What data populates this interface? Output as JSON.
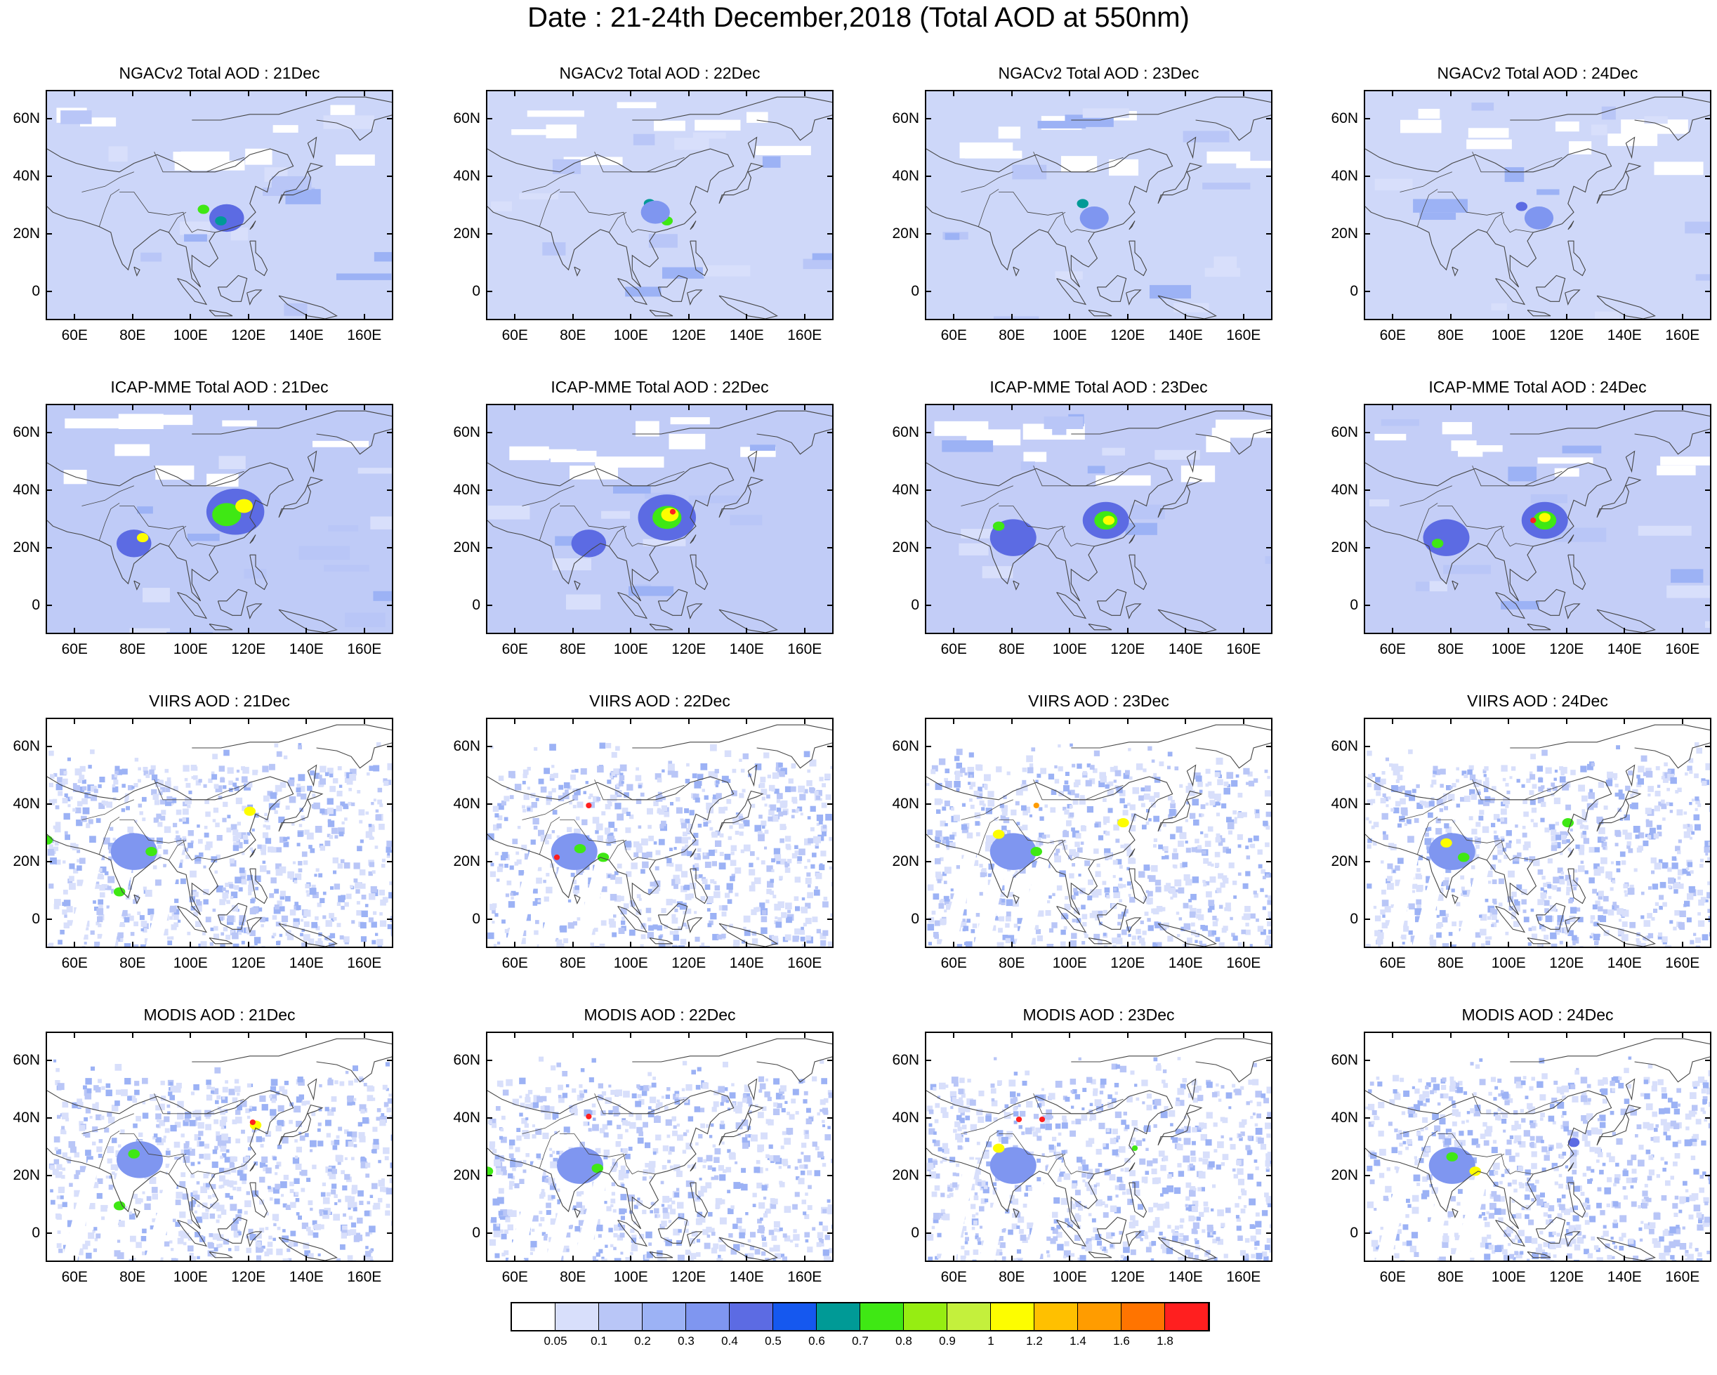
{
  "title": "Date : 21-24th December,2018 (Total AOD at 550nm)",
  "chart_data": {
    "type": "heatmap",
    "layout": "4x4 panel grid",
    "x_axis": {
      "ticks": [
        "60E",
        "80E",
        "100E",
        "120E",
        "140E",
        "160E"
      ],
      "tick_values": [
        60,
        80,
        100,
        120,
        140,
        160
      ],
      "range": [
        50,
        170
      ]
    },
    "y_axis": {
      "ticks": [
        "60N",
        "40N",
        "20N",
        "0"
      ],
      "tick_values": [
        60,
        40,
        20,
        0
      ],
      "range": [
        -10,
        70
      ]
    },
    "colorbar": {
      "labels": [
        "0.05",
        "0.1",
        "0.2",
        "0.3",
        "0.4",
        "0.5",
        "0.6",
        "0.7",
        "0.8",
        "0.9",
        "1",
        "1.2",
        "1.4",
        "1.6",
        "1.8"
      ],
      "colors": [
        "#ffffff",
        "#d8dffb",
        "#b9c6f7",
        "#9cb2f5",
        "#7f96f0",
        "#5c6be3",
        "#1558ef",
        "#009a96",
        "#3fe814",
        "#96ed12",
        "#c4f03c",
        "#fdfd00",
        "#ffc000",
        "#ff9c00",
        "#ff7400",
        "#ff1f1f"
      ]
    },
    "panels": [
      {
        "title": "NGACv2 Total AOD : 21Dec",
        "bg": "#ccd6f9",
        "hot": [
          [
            112,
            26,
            6,
            "#5c6be3"
          ],
          [
            104,
            29,
            2,
            "#3fe814"
          ],
          [
            110,
            25,
            2,
            "#009a96"
          ]
        ]
      },
      {
        "title": "NGACv2 Total AOD : 22Dec",
        "bg": "#cfd8f9",
        "hot": [
          [
            106,
            31,
            2,
            "#009a96"
          ],
          [
            112,
            25,
            2,
            "#3fe814"
          ],
          [
            108,
            28,
            5,
            "#7f96f0"
          ]
        ]
      },
      {
        "title": "NGACv2 Total AOD : 23Dec",
        "bg": "#cdd7f9",
        "hot": [
          [
            104,
            31,
            2,
            "#009a96"
          ],
          [
            108,
            26,
            5,
            "#7f96f0"
          ]
        ]
      },
      {
        "title": "NGACv2 Total AOD : 24Dec",
        "bg": "#cfd8f9",
        "hot": [
          [
            104,
            30,
            2,
            "#5c6be3"
          ],
          [
            110,
            26,
            5,
            "#7f96f0"
          ]
        ]
      },
      {
        "title": "ICAP-MME Total AOD : 21Dec",
        "bg": "#bfcbf7",
        "hot": [
          [
            115,
            33,
            10,
            "#5c6be3"
          ],
          [
            112,
            32,
            5,
            "#3fe814"
          ],
          [
            118,
            35,
            3,
            "#fdfd00"
          ],
          [
            80,
            22,
            6,
            "#5c6be3"
          ],
          [
            83,
            24,
            2,
            "#fdfd00"
          ]
        ]
      },
      {
        "title": "ICAP-MME Total AOD : 22Dec",
        "bg": "#c1ccf7",
        "hot": [
          [
            112,
            31,
            10,
            "#5c6be3"
          ],
          [
            112,
            31,
            5,
            "#3fe814"
          ],
          [
            113,
            32,
            3,
            "#fdfd00"
          ],
          [
            114,
            33,
            1,
            "#ff1f1f"
          ],
          [
            85,
            22,
            6,
            "#5c6be3"
          ]
        ]
      },
      {
        "title": "ICAP-MME Total AOD : 23Dec",
        "bg": "#c3cdf7",
        "hot": [
          [
            112,
            30,
            8,
            "#5c6be3"
          ],
          [
            112,
            30,
            4,
            "#3fe814"
          ],
          [
            113,
            30,
            2,
            "#fdfd00"
          ],
          [
            80,
            24,
            8,
            "#5c6be3"
          ],
          [
            75,
            28,
            2,
            "#3fe814"
          ]
        ]
      },
      {
        "title": "ICAP-MME Total AOD : 24Dec",
        "bg": "#c4cef7",
        "hot": [
          [
            112,
            30,
            8,
            "#5c6be3"
          ],
          [
            112,
            30,
            4,
            "#3fe814"
          ],
          [
            112,
            31,
            2,
            "#fdfd00"
          ],
          [
            108,
            30,
            1,
            "#ff1f1f"
          ],
          [
            78,
            24,
            8,
            "#5c6be3"
          ],
          [
            75,
            22,
            2,
            "#3fe814"
          ]
        ]
      },
      {
        "title": "VIIRS AOD : 21Dec",
        "bg": "#e3e8fc",
        "hot": [
          [
            80,
            24,
            8,
            "#7f96f0"
          ],
          [
            86,
            24,
            2,
            "#3fe814"
          ],
          [
            75,
            10,
            2,
            "#3fe814"
          ],
          [
            120,
            38,
            2,
            "#fdfd00"
          ],
          [
            50,
            28,
            2,
            "#3fe814"
          ]
        ]
      },
      {
        "title": "VIIRS AOD : 22Dec",
        "bg": "#e3e8fc",
        "hot": [
          [
            80,
            24,
            8,
            "#7f96f0"
          ],
          [
            82,
            25,
            2,
            "#3fe814"
          ],
          [
            90,
            22,
            2,
            "#3fe814"
          ],
          [
            85,
            40,
            1,
            "#ff1f1f"
          ],
          [
            74,
            22,
            1,
            "#ff1f1f"
          ]
        ]
      },
      {
        "title": "VIIRS AOD : 23Dec",
        "bg": "#e3e8fc",
        "hot": [
          [
            80,
            24,
            8,
            "#7f96f0"
          ],
          [
            75,
            30,
            2,
            "#fdfd00"
          ],
          [
            88,
            24,
            2,
            "#3fe814"
          ],
          [
            118,
            34,
            2,
            "#fdfd00"
          ],
          [
            88,
            40,
            1,
            "#ff9c00"
          ]
        ]
      },
      {
        "title": "VIIRS AOD : 24Dec",
        "bg": "#e3e8fc",
        "hot": [
          [
            80,
            24,
            8,
            "#7f96f0"
          ],
          [
            78,
            27,
            2,
            "#fdfd00"
          ],
          [
            120,
            34,
            2,
            "#3fe814"
          ],
          [
            84,
            22,
            2,
            "#3fe814"
          ]
        ]
      },
      {
        "title": "MODIS AOD : 21Dec",
        "bg": "#e1e6fb",
        "hot": [
          [
            82,
            26,
            8,
            "#7f96f0"
          ],
          [
            80,
            28,
            2,
            "#3fe814"
          ],
          [
            75,
            10,
            2,
            "#3fe814"
          ],
          [
            122,
            38,
            2,
            "#fdfd00"
          ],
          [
            121,
            39,
            1,
            "#ff1f1f"
          ]
        ]
      },
      {
        "title": "MODIS AOD : 22Dec",
        "bg": "#e1e6fb",
        "hot": [
          [
            82,
            24,
            8,
            "#7f96f0"
          ],
          [
            88,
            23,
            2,
            "#3fe814"
          ],
          [
            85,
            41,
            1,
            "#ff1f1f"
          ],
          [
            50,
            22,
            2,
            "#3fe814"
          ]
        ]
      },
      {
        "title": "MODIS AOD : 23Dec",
        "bg": "#e1e6fb",
        "hot": [
          [
            80,
            24,
            8,
            "#7f96f0"
          ],
          [
            75,
            30,
            2,
            "#fdfd00"
          ],
          [
            82,
            40,
            1,
            "#ff1f1f"
          ],
          [
            90,
            40,
            1,
            "#ff1f1f"
          ],
          [
            122,
            30,
            1,
            "#3fe814"
          ]
        ]
      },
      {
        "title": "MODIS AOD : 24Dec",
        "bg": "#e1e6fb",
        "hot": [
          [
            80,
            24,
            8,
            "#7f96f0"
          ],
          [
            80,
            27,
            2,
            "#3fe814"
          ],
          [
            88,
            22,
            2,
            "#fdfd00"
          ],
          [
            122,
            32,
            2,
            "#5c6be3"
          ]
        ]
      }
    ]
  }
}
